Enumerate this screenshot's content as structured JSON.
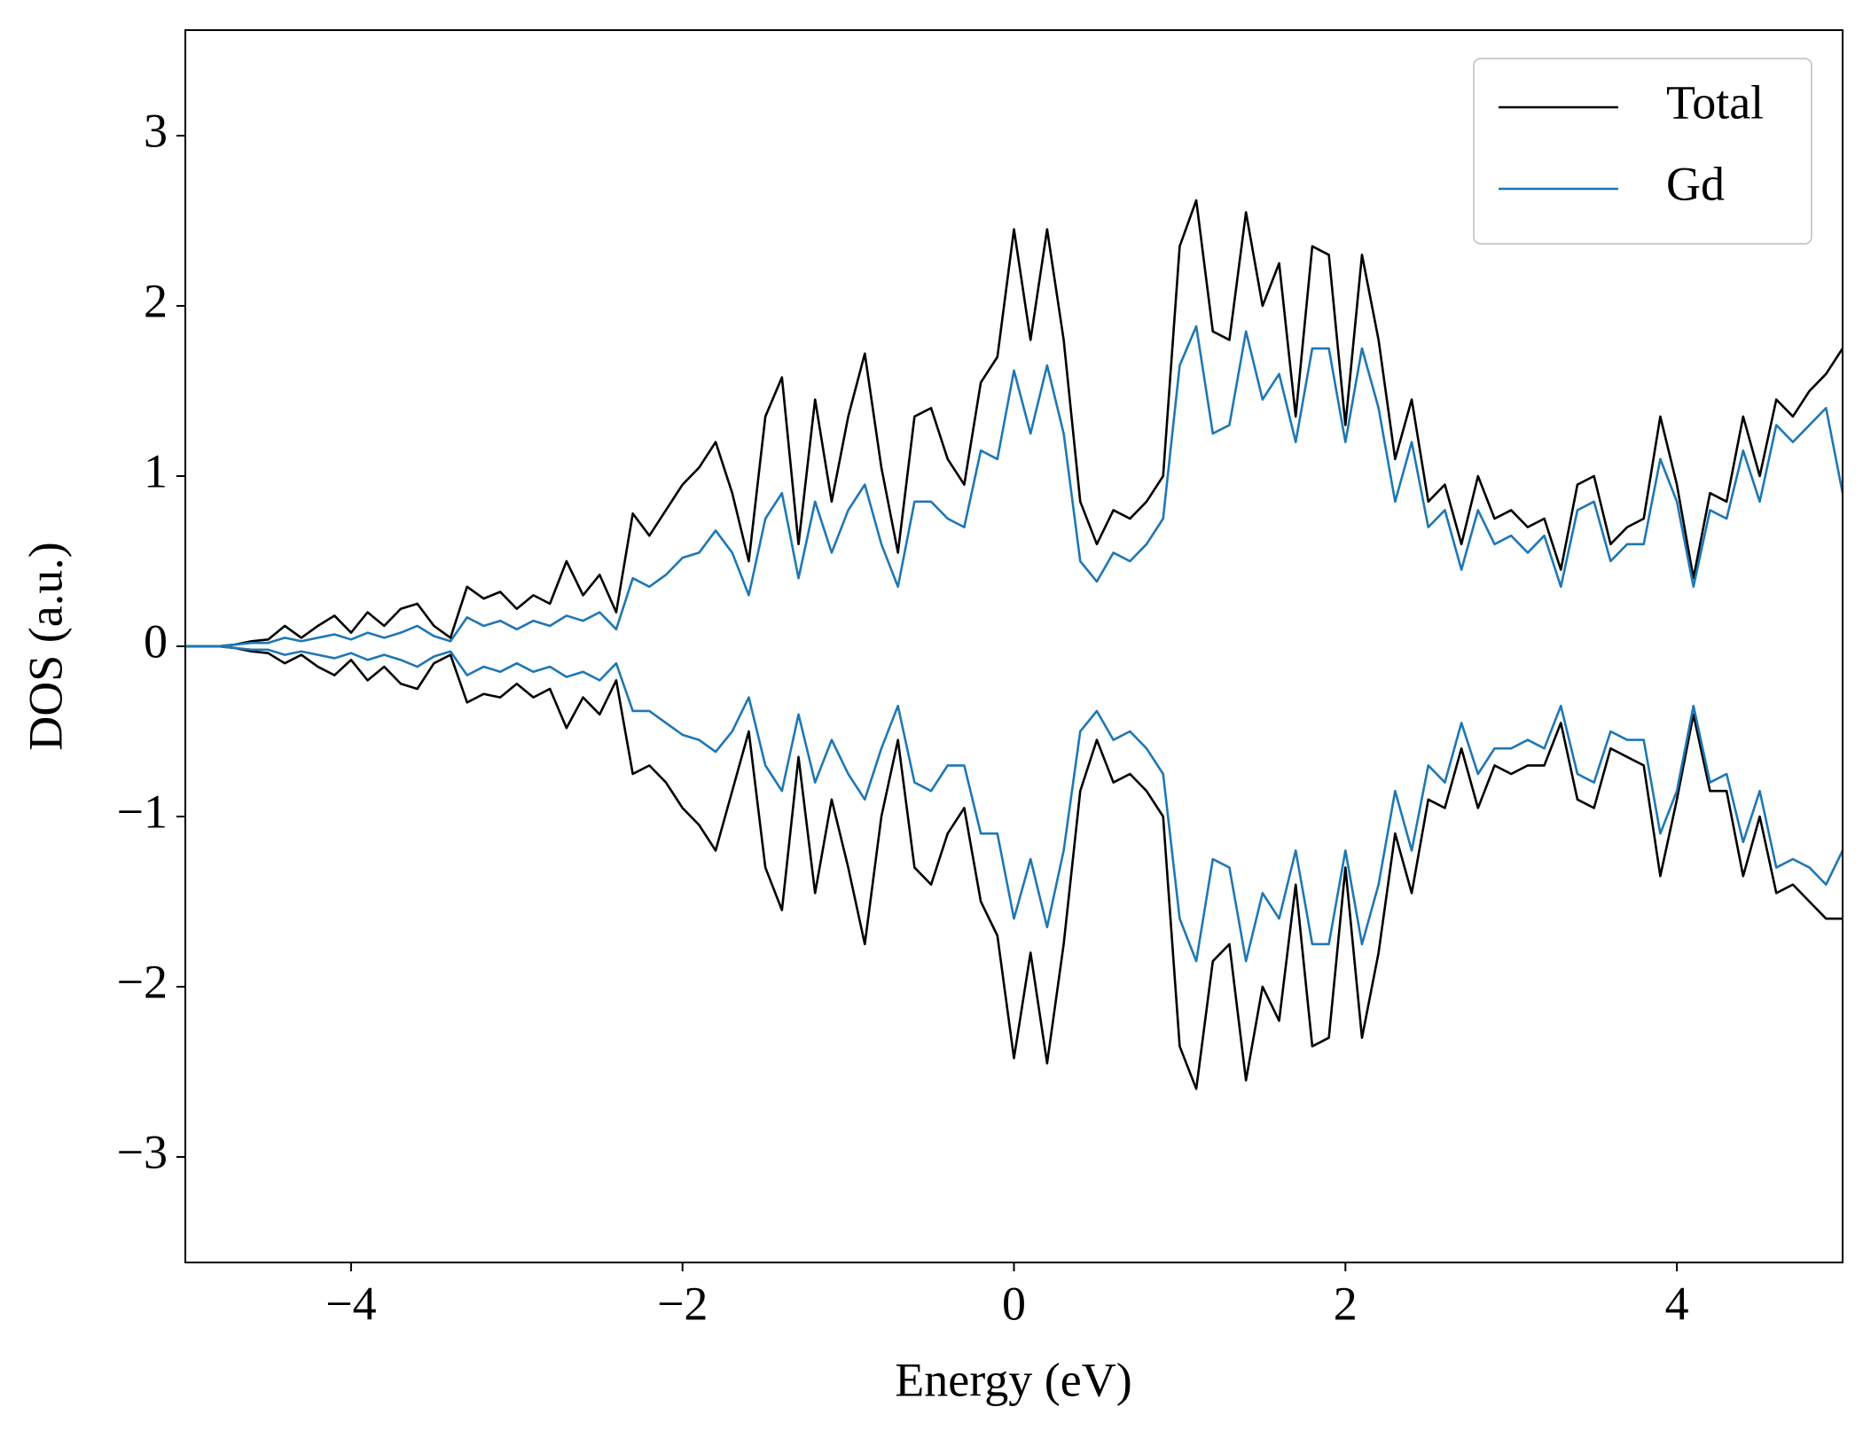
{
  "chart_data": {
    "type": "line",
    "x_label": "Energy (eV)",
    "y_label": "DOS (a.u.)",
    "xlim": [
      -5,
      5
    ],
    "ylim": [
      -3.62,
      3.62
    ],
    "xticks": [
      {
        "value": -4,
        "label": "−4"
      },
      {
        "value": -2,
        "label": "−2"
      },
      0,
      2,
      4
    ],
    "yticks": [
      {
        "value": -3,
        "label": "−3"
      },
      {
        "value": -2,
        "label": "−2"
      },
      {
        "value": -1,
        "label": "−1"
      },
      0,
      1,
      2,
      3
    ],
    "legend": "upper right",
    "grid": false,
    "x": [
      -5.0,
      -4.9,
      -4.8,
      -4.7,
      -4.6,
      -4.5,
      -4.4,
      -4.3,
      -4.2,
      -4.1,
      -4.0,
      -3.9,
      -3.8,
      -3.7,
      -3.6,
      -3.5,
      -3.4,
      -3.3,
      -3.2,
      -3.1,
      -3.0,
      -2.9,
      -2.8,
      -2.7,
      -2.6,
      -2.5,
      -2.4,
      -2.3,
      -2.2,
      -2.1,
      -2.0,
      -1.9,
      -1.8,
      -1.7,
      -1.6,
      -1.5,
      -1.4,
      -1.3,
      -1.2,
      -1.1,
      -1.0,
      -0.9,
      -0.8,
      -0.7,
      -0.6,
      -0.5,
      -0.4,
      -0.3,
      -0.2,
      -0.1,
      0.0,
      0.1,
      0.2,
      0.3,
      0.4,
      0.5,
      0.6,
      0.7,
      0.8,
      0.9,
      1.0,
      1.1,
      1.2,
      1.3,
      1.4,
      1.5,
      1.6,
      1.7,
      1.8,
      1.9,
      2.0,
      2.1,
      2.2,
      2.3,
      2.4,
      2.5,
      2.6,
      2.7,
      2.8,
      2.9,
      3.0,
      3.1,
      3.2,
      3.3,
      3.4,
      3.5,
      3.6,
      3.7,
      3.8,
      3.9,
      4.0,
      4.1,
      4.2,
      4.3,
      4.4,
      4.5,
      4.6,
      4.7,
      4.8,
      4.9,
      5.0
    ],
    "series": [
      {
        "name": "Total",
        "color": "#000000",
        "values": [
          0,
          0,
          0,
          0.01,
          0.03,
          0.04,
          0.12,
          0.05,
          0.12,
          0.18,
          0.08,
          0.2,
          0.12,
          0.22,
          0.25,
          0.12,
          0.05,
          0.35,
          0.28,
          0.32,
          0.22,
          0.3,
          0.25,
          0.5,
          0.3,
          0.42,
          0.2,
          0.78,
          0.65,
          0.8,
          0.95,
          1.05,
          1.2,
          0.9,
          0.5,
          1.35,
          1.58,
          0.6,
          1.45,
          0.85,
          1.35,
          1.72,
          1.05,
          0.55,
          1.35,
          1.4,
          1.1,
          0.95,
          1.55,
          1.7,
          2.45,
          1.8,
          2.45,
          1.8,
          0.85,
          0.6,
          0.8,
          0.75,
          0.85,
          1.0,
          2.35,
          2.62,
          1.85,
          1.8,
          2.55,
          2.0,
          2.25,
          1.35,
          2.35,
          2.3,
          1.3,
          2.3,
          1.8,
          1.1,
          1.45,
          0.85,
          0.95,
          0.6,
          1.0,
          0.75,
          0.8,
          0.7,
          0.75,
          0.45,
          0.95,
          1.0,
          0.6,
          0.7,
          0.75,
          1.35,
          0.95,
          0.4,
          0.9,
          0.85,
          1.35,
          1.0,
          1.45,
          1.35,
          1.5,
          1.6,
          1.75
        ],
        "values_down": [
          0,
          0,
          0,
          -0.01,
          -0.03,
          -0.04,
          -0.1,
          -0.05,
          -0.12,
          -0.17,
          -0.08,
          -0.2,
          -0.12,
          -0.22,
          -0.25,
          -0.1,
          -0.05,
          -0.33,
          -0.28,
          -0.3,
          -0.22,
          -0.3,
          -0.25,
          -0.48,
          -0.3,
          -0.4,
          -0.2,
          -0.75,
          -0.7,
          -0.8,
          -0.95,
          -1.05,
          -1.2,
          -0.85,
          -0.5,
          -1.3,
          -1.55,
          -0.65,
          -1.45,
          -0.9,
          -1.3,
          -1.75,
          -1.0,
          -0.55,
          -1.3,
          -1.4,
          -1.1,
          -0.95,
          -1.5,
          -1.7,
          -2.42,
          -1.8,
          -2.45,
          -1.75,
          -0.85,
          -0.55,
          -0.8,
          -0.75,
          -0.85,
          -1.0,
          -2.35,
          -2.6,
          -1.85,
          -1.75,
          -2.55,
          -2.0,
          -2.2,
          -1.4,
          -2.35,
          -2.3,
          -1.3,
          -2.3,
          -1.8,
          -1.1,
          -1.45,
          -0.9,
          -0.95,
          -0.6,
          -0.95,
          -0.7,
          -0.75,
          -0.7,
          -0.7,
          -0.45,
          -0.9,
          -0.95,
          -0.6,
          -0.65,
          -0.7,
          -1.35,
          -0.9,
          -0.4,
          -0.85,
          -0.85,
          -1.35,
          -1.0,
          -1.45,
          -1.4,
          -1.5,
          -1.6,
          -1.6
        ]
      },
      {
        "name": "Gd",
        "color": "#1f77b4",
        "values": [
          0,
          0,
          0,
          0.01,
          0.02,
          0.02,
          0.05,
          0.03,
          0.05,
          0.07,
          0.04,
          0.08,
          0.05,
          0.08,
          0.12,
          0.06,
          0.03,
          0.17,
          0.12,
          0.15,
          0.1,
          0.15,
          0.12,
          0.18,
          0.15,
          0.2,
          0.1,
          0.4,
          0.35,
          0.42,
          0.52,
          0.55,
          0.68,
          0.55,
          0.3,
          0.75,
          0.9,
          0.4,
          0.85,
          0.55,
          0.8,
          0.95,
          0.6,
          0.35,
          0.85,
          0.85,
          0.75,
          0.7,
          1.15,
          1.1,
          1.62,
          1.25,
          1.65,
          1.25,
          0.5,
          0.38,
          0.55,
          0.5,
          0.6,
          0.75,
          1.65,
          1.88,
          1.25,
          1.3,
          1.85,
          1.45,
          1.6,
          1.2,
          1.75,
          1.75,
          1.2,
          1.75,
          1.4,
          0.85,
          1.2,
          0.7,
          0.8,
          0.45,
          0.8,
          0.6,
          0.65,
          0.55,
          0.65,
          0.35,
          0.8,
          0.85,
          0.5,
          0.6,
          0.6,
          1.1,
          0.85,
          0.35,
          0.8,
          0.75,
          1.15,
          0.85,
          1.3,
          1.2,
          1.3,
          1.4,
          0.9
        ],
        "values_down": [
          0,
          0,
          0,
          -0.01,
          -0.02,
          -0.02,
          -0.05,
          -0.03,
          -0.05,
          -0.07,
          -0.04,
          -0.08,
          -0.05,
          -0.08,
          -0.12,
          -0.06,
          -0.03,
          -0.17,
          -0.12,
          -0.15,
          -0.1,
          -0.15,
          -0.12,
          -0.18,
          -0.15,
          -0.2,
          -0.1,
          -0.38,
          -0.38,
          -0.45,
          -0.52,
          -0.55,
          -0.62,
          -0.5,
          -0.3,
          -0.7,
          -0.85,
          -0.4,
          -0.8,
          -0.55,
          -0.75,
          -0.9,
          -0.6,
          -0.35,
          -0.8,
          -0.85,
          -0.7,
          -0.7,
          -1.1,
          -1.1,
          -1.6,
          -1.25,
          -1.65,
          -1.2,
          -0.5,
          -0.38,
          -0.55,
          -0.5,
          -0.6,
          -0.75,
          -1.6,
          -1.85,
          -1.25,
          -1.3,
          -1.85,
          -1.45,
          -1.6,
          -1.2,
          -1.75,
          -1.75,
          -1.2,
          -1.75,
          -1.4,
          -0.85,
          -1.2,
          -0.7,
          -0.8,
          -0.45,
          -0.75,
          -0.6,
          -0.6,
          -0.55,
          -0.6,
          -0.35,
          -0.75,
          -0.8,
          -0.5,
          -0.55,
          -0.55,
          -1.1,
          -0.85,
          -0.35,
          -0.8,
          -0.75,
          -1.15,
          -0.85,
          -1.3,
          -1.25,
          -1.3,
          -1.4,
          -1.2
        ]
      }
    ]
  }
}
